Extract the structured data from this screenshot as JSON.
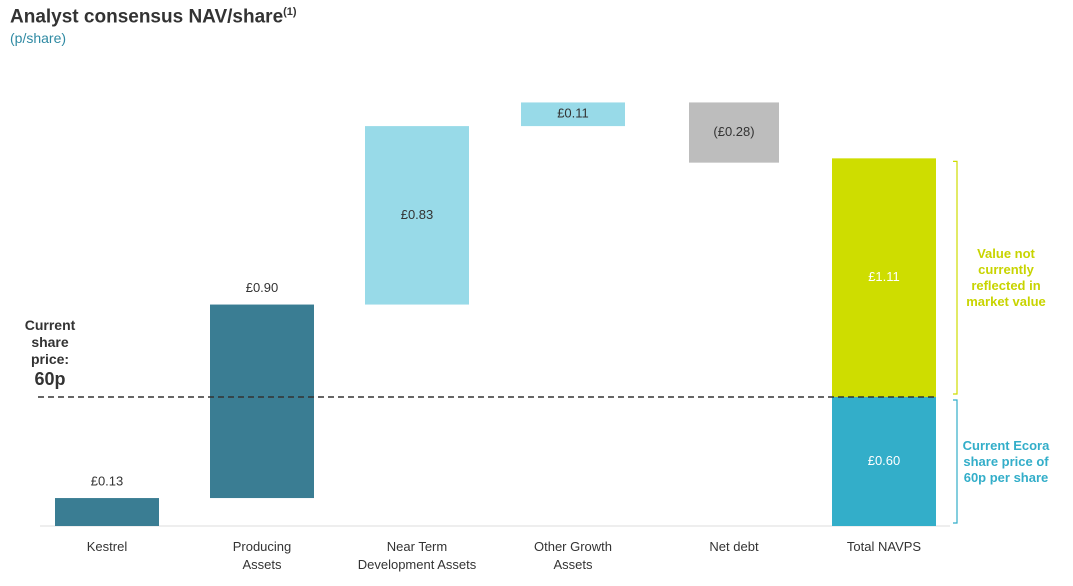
{
  "chart_data": {
    "type": "waterfall",
    "title": "Analyst consensus NAV/share",
    "title_superscript": "(1)",
    "subtitle": "(p/share)",
    "categories": [
      "Kestrel",
      "Producing Assets",
      "Near Term Development Assets",
      "Other Growth Assets",
      "Net debt"
    ],
    "values": [
      0.13,
      0.9,
      0.83,
      0.11,
      -0.28
    ],
    "value_labels": [
      "£0.13",
      "£0.90",
      "£0.83",
      "£0.11",
      "(£0.28)"
    ],
    "colors": [
      "#3a7d93",
      "#3a7d93",
      "#98dae8",
      "#98dae8",
      "#bdbdbd"
    ],
    "total": {
      "category": "Total NAVPS",
      "segments": [
        {
          "value": 0.6,
          "label": "£0.60",
          "color": "#33aec9",
          "note": "Current Ecora share price of 60p per share",
          "note_color": "#33aec9"
        },
        {
          "value": 1.11,
          "label": "£1.11",
          "color": "#cedd00",
          "note": "Value not currently reflected in market value",
          "note_color": "#c8d400"
        }
      ]
    },
    "reference_line": {
      "value": 0.6,
      "label": "60p",
      "caption": "Current share price:"
    }
  }
}
